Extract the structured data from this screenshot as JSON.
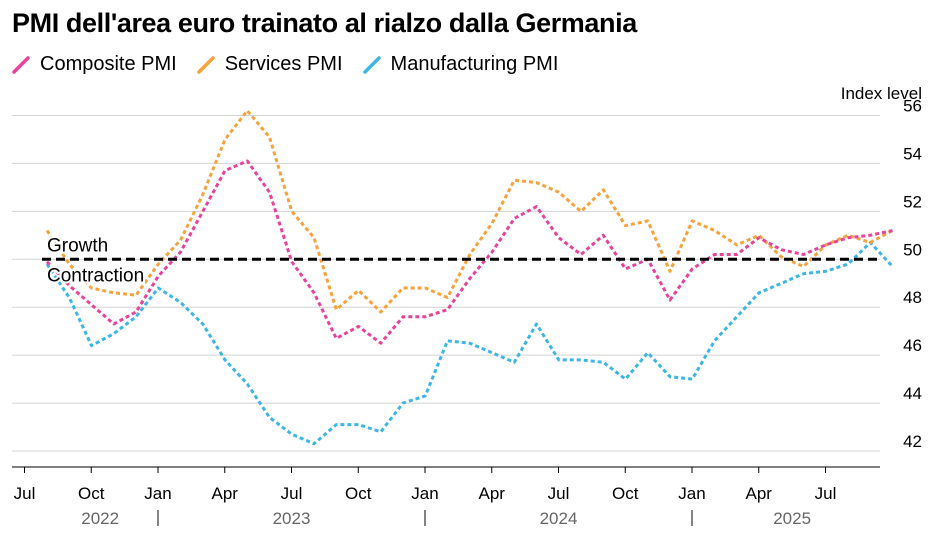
{
  "chart_data": {
    "type": "line",
    "title": "PMI dell'area euro trainato al rialzo dalla Germania",
    "ylabel": "Index level",
    "ylim": [
      41.5,
      57
    ],
    "yticks": [
      42,
      44,
      46,
      48,
      50,
      52,
      54,
      56
    ],
    "threshold": 50,
    "threshold_labels": {
      "above": "Growth",
      "below": "Contraction"
    },
    "x_ticks": [
      {
        "label": "Jul",
        "i": 0
      },
      {
        "label": "Oct",
        "i": 3
      },
      {
        "label": "Jan",
        "i": 6
      },
      {
        "label": "Apr",
        "i": 9
      },
      {
        "label": "Jul",
        "i": 12
      },
      {
        "label": "Oct",
        "i": 15
      },
      {
        "label": "Jan",
        "i": 18
      },
      {
        "label": "Apr",
        "i": 21
      },
      {
        "label": "Jul",
        "i": 24
      },
      {
        "label": "Oct",
        "i": 27
      },
      {
        "label": "Jan",
        "i": 30
      },
      {
        "label": "Apr",
        "i": 33
      },
      {
        "label": "Jul",
        "i": 36
      }
    ],
    "years": [
      {
        "label": "2022",
        "center": 3.4
      },
      {
        "label": "2023",
        "center": 12
      },
      {
        "label": "2024",
        "center": 24
      },
      {
        "label": "2025",
        "center": 34.5
      }
    ],
    "year_separators": [
      6,
      18,
      30
    ],
    "series": [
      {
        "name": "Composite PMI",
        "color": "#e8429b",
        "values": [
          49.9,
          48.9,
          48.1,
          47.3,
          47.8,
          49.3,
          50.3,
          52.0,
          53.7,
          54.1,
          52.8,
          49.9,
          48.6,
          46.7,
          47.2,
          46.5,
          47.6,
          47.6,
          47.9,
          49.2,
          50.3,
          51.7,
          52.2,
          50.9,
          50.2,
          51.0,
          49.6,
          50.0,
          48.3,
          49.6,
          50.2,
          50.2,
          50.9,
          50.4,
          50.2,
          50.6,
          50.9,
          51.0,
          51.2
        ]
      },
      {
        "name": "Services PMI",
        "color": "#f5a33a",
        "values": [
          51.2,
          49.8,
          48.8,
          48.6,
          48.5,
          49.8,
          50.8,
          52.7,
          55.0,
          56.2,
          55.1,
          52.0,
          50.9,
          47.9,
          48.7,
          47.8,
          48.8,
          48.8,
          48.4,
          50.2,
          51.5,
          53.3,
          53.2,
          52.8,
          52.0,
          52.9,
          51.4,
          51.6,
          49.5,
          51.6,
          51.2,
          50.6,
          51.0,
          50.1,
          49.7,
          50.6,
          51.0,
          50.7,
          51.2
        ]
      },
      {
        "name": "Manufacturing PMI",
        "color": "#3cb6e3",
        "values": [
          49.8,
          48.4,
          46.4,
          46.9,
          47.6,
          48.8,
          48.2,
          47.3,
          45.8,
          44.8,
          43.4,
          42.7,
          42.3,
          43.1,
          43.1,
          42.8,
          44.0,
          44.3,
          46.6,
          46.5,
          46.1,
          45.7,
          47.3,
          45.8,
          45.8,
          45.7,
          45.0,
          46.1,
          45.1,
          45.0,
          46.6,
          47.6,
          48.6,
          49.0,
          49.4,
          49.5,
          49.8,
          50.7,
          49.7
        ]
      }
    ]
  }
}
